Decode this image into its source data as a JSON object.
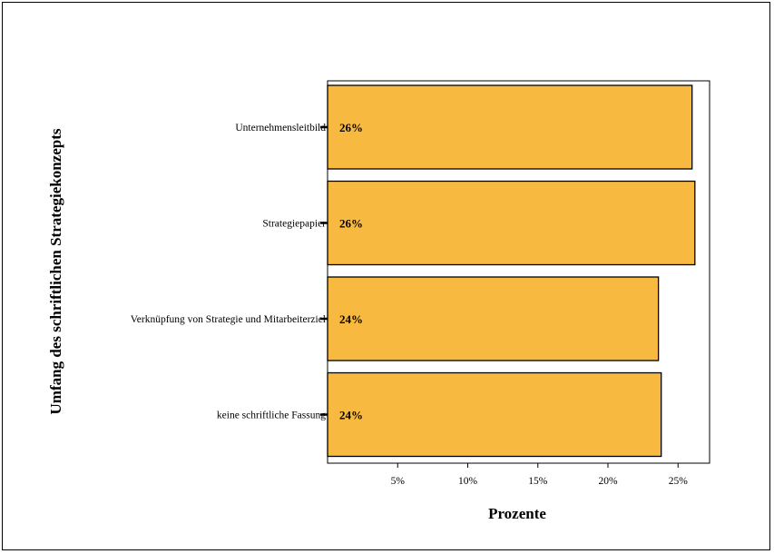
{
  "chart_data": {
    "type": "bar",
    "orientation": "horizontal",
    "categories": [
      "Unternehmensleitbild",
      "Strategiepapier",
      "Verknüpfung von Strategie und Mitarbeiterziel",
      "keine schriftliche Fassung"
    ],
    "values": [
      26.0,
      26.2,
      23.6,
      23.8
    ],
    "data_labels": [
      "26%",
      "26%",
      "24%",
      "24%"
    ],
    "xlabel": "Prozente",
    "ylabel": "Umfang des schriftlichen Strategiekonzepts",
    "xticks": [
      5,
      10,
      15,
      20,
      25
    ],
    "xtick_labels": [
      "5%",
      "10%",
      "15%",
      "20%",
      "25%"
    ],
    "xlim": [
      0,
      27
    ],
    "grid": false,
    "colors": {
      "bar_fill": "#f7b93f",
      "bar_stroke": "#000000"
    }
  }
}
